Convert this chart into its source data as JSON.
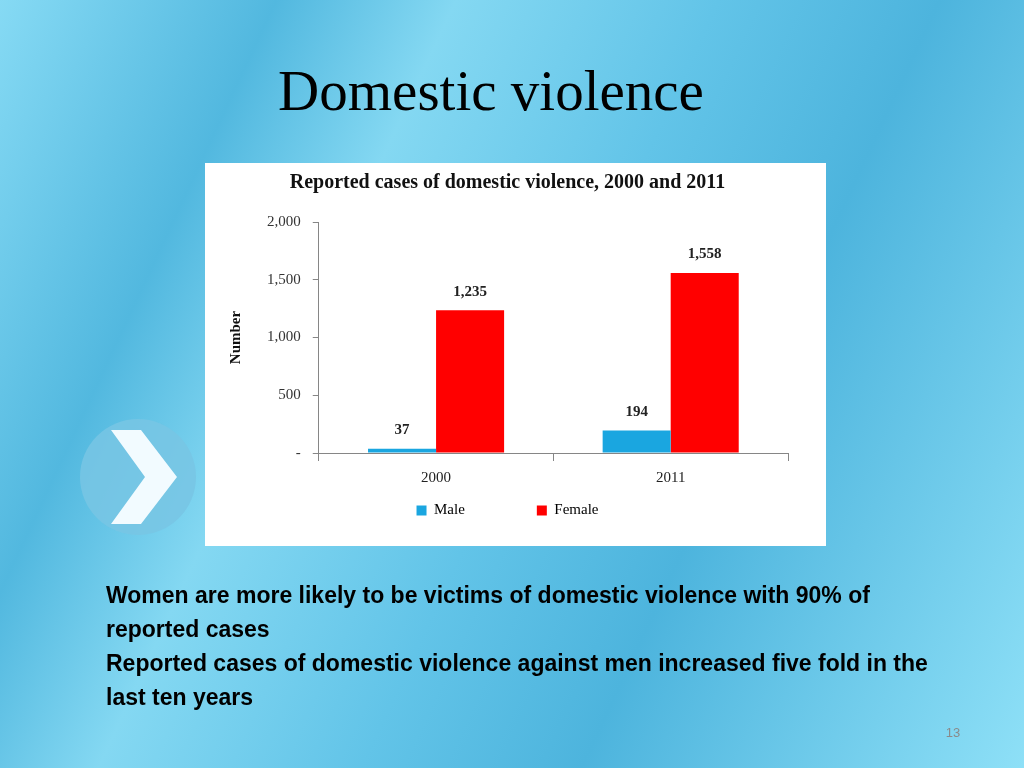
{
  "chart_data": {
    "type": "bar",
    "title": "Domestic violence",
    "subtitle": "Reported cases of domestic violence, 2000 and 2011",
    "ylabel": "Number",
    "categories": [
      "2000",
      "2011"
    ],
    "series": [
      {
        "name": "Male",
        "color": "#1aa6e0",
        "values": [
          37,
          194
        ],
        "value_labels": [
          "37",
          "194"
        ]
      },
      {
        "name": "Female",
        "color": "#ff0000",
        "values": [
          1235,
          1558
        ],
        "value_labels": [
          "1,235",
          "1,558"
        ]
      }
    ],
    "ylim": [
      0,
      2000
    ],
    "yticks": [
      {
        "value": 0,
        "label": "-"
      },
      500,
      {
        "value": 1000,
        "label": "1,000"
      },
      {
        "value": 1500,
        "label": "1,500"
      },
      {
        "value": 2000,
        "label": "2,000"
      }
    ],
    "legend": "bottom",
    "annotations": [
      "Women are more likely to be victims of domestic violence with 90% of reported cases",
      "Reported cases of domestic violence against men increased five fold in the last ten years",
      "13"
    ]
  }
}
